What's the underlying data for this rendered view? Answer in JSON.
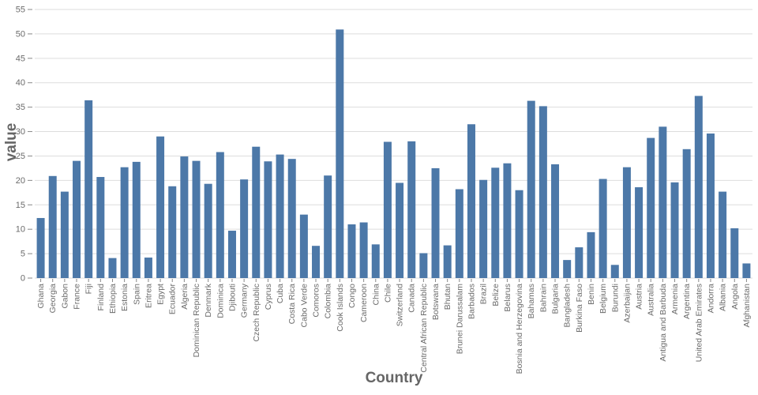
{
  "chart_data": {
    "type": "bar",
    "title": "",
    "xlabel": "Country",
    "ylabel": "value",
    "ylim": [
      0,
      55
    ],
    "ytick_step": 5,
    "grid": true,
    "legend": "none",
    "categories": [
      "Ghana",
      "Georgia",
      "Gabon",
      "France",
      "Fiji",
      "Finland",
      "Ethiopia",
      "Estonia",
      "Spain",
      "Eritrea",
      "Egypt",
      "Ecuador",
      "Algeria",
      "Dominican Republic",
      "Denmark",
      "Dominica",
      "Djibouti",
      "Germany",
      "Czech Republic",
      "Cyprus",
      "Cuba",
      "Costa Rica",
      "Cabo Verde",
      "Comoros",
      "Colombia",
      "Cook Islands",
      "Congo",
      "Cameroon",
      "China",
      "Chile",
      "Switzerland",
      "Canada",
      "Central African Republic",
      "Botswana",
      "Bhutan",
      "Brunei Darussalam",
      "Barbados",
      "Brazil",
      "Belize",
      "Belarus",
      "Bosnia and Herzegovina",
      "Bahamas",
      "Bahrain",
      "Bulgaria",
      "Bangladesh",
      "Burkina Faso",
      "Benin",
      "Belgium",
      "Burundi",
      "Azerbaijan",
      "Austria",
      "Australia",
      "Antigua and Barbuda",
      "Armenia",
      "Argentina",
      "United Arab Emirates",
      "Andorra",
      "Albania",
      "Angola",
      "Afghanistan"
    ],
    "values": [
      12.3,
      20.9,
      17.7,
      24.0,
      36.4,
      20.7,
      4.1,
      22.7,
      23.8,
      4.2,
      29.0,
      18.8,
      24.9,
      24.0,
      19.3,
      25.8,
      9.7,
      20.2,
      26.9,
      23.9,
      25.3,
      24.4,
      13.0,
      6.6,
      21.0,
      50.9,
      11.0,
      11.4,
      6.9,
      27.9,
      19.5,
      28.0,
      5.1,
      22.5,
      6.7,
      18.2,
      31.5,
      20.1,
      22.6,
      23.5,
      18.0,
      36.3,
      35.2,
      23.3,
      3.7,
      6.3,
      9.4,
      20.3,
      2.7,
      22.7,
      18.6,
      28.7,
      31.0,
      19.6,
      26.4,
      37.3,
      29.6,
      17.7,
      10.2,
      3.0
    ],
    "colors": {
      "bar": "#4c78a8",
      "grid": "#dddddd",
      "domain_line": "#dddddd",
      "tick": "#888888",
      "axis_label": "#6b6b6b",
      "axis_title": "#666666",
      "background": "#ffffff"
    }
  }
}
